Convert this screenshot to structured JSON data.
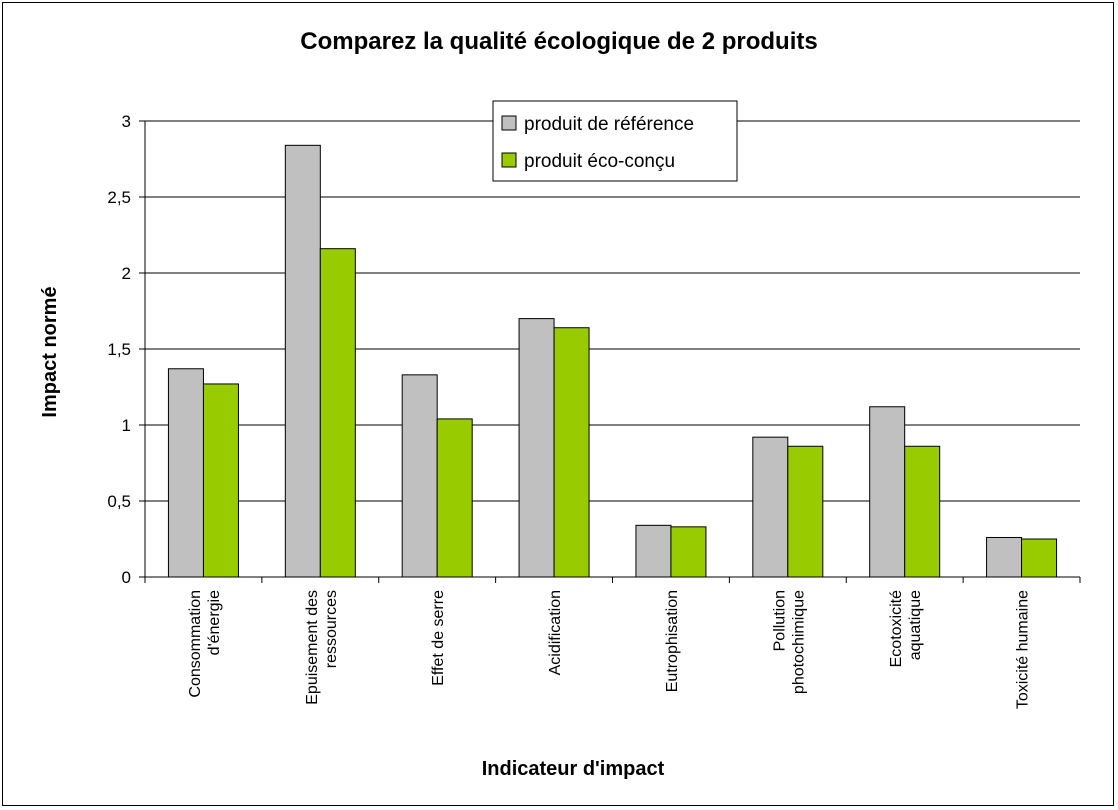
{
  "chart_data": {
    "type": "bar",
    "title": "Comparez la qualité écologique de 2 produits",
    "xlabel": "Indicateur d'impact",
    "ylabel": "Impact normé",
    "ylim": [
      0,
      3
    ],
    "yticks": [
      0,
      0.5,
      1,
      1.5,
      2,
      2.5,
      3
    ],
    "ytick_labels": [
      "0",
      "0,5",
      "1",
      "1,5",
      "2",
      "2,5",
      "3"
    ],
    "grid": true,
    "legend_position": "top-center",
    "categories": [
      [
        "Consommation",
        "d'énergie"
      ],
      [
        "Epuisement des",
        "ressources"
      ],
      [
        "Effet de serre"
      ],
      [
        "Acidification"
      ],
      [
        "Eutrophisation"
      ],
      [
        "Pollution",
        "photochimique"
      ],
      [
        "Ecotoxicité",
        "aquatique"
      ],
      [
        "Toxicité humaine"
      ]
    ],
    "series": [
      {
        "name": "produit de référence",
        "color": "#c0c0c0",
        "values": [
          1.37,
          2.84,
          1.33,
          1.7,
          0.34,
          0.92,
          1.12,
          0.26
        ]
      },
      {
        "name": "produit éco-conçu",
        "color": "#99cc00",
        "values": [
          1.27,
          2.16,
          1.04,
          1.64,
          0.33,
          0.86,
          0.86,
          0.25
        ]
      }
    ]
  }
}
